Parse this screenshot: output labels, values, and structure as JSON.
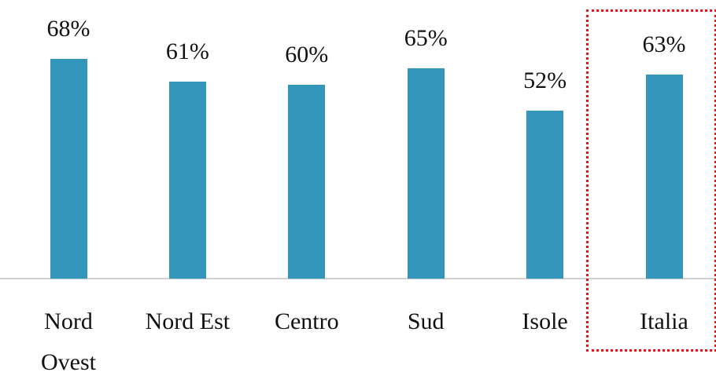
{
  "chart_data": {
    "type": "bar",
    "categories": [
      "Nord Ovest",
      "Nord Est",
      "Centro",
      "Sud",
      "Isole",
      "Italia"
    ],
    "values": [
      68,
      61,
      60,
      65,
      52,
      63
    ],
    "value_labels": [
      "68%",
      "61%",
      "60%",
      "65%",
      "52%",
      "63%"
    ],
    "color": "#3596bc"
  }
}
